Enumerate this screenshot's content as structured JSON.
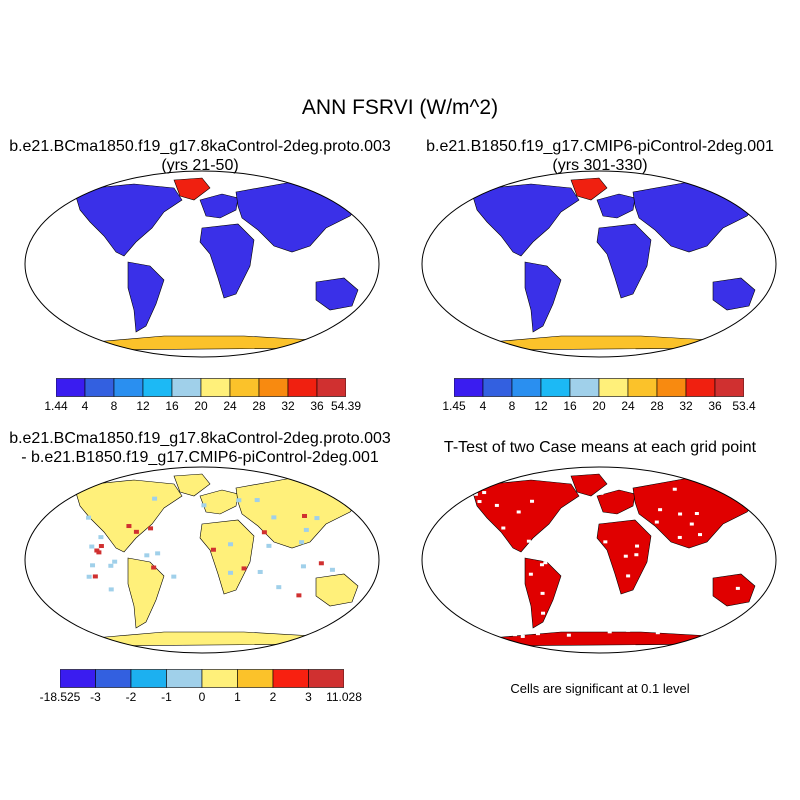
{
  "title": "ANN FSRVI (W/m^2)",
  "panels": [
    {
      "title_line1": "b.e21.BCma1850.f19_g17.8kaControl-2deg.proto.003",
      "title_line2": "(yrs 21-50)",
      "colorbar": {
        "labels": [
          "1.44",
          "4",
          "8",
          "12",
          "16",
          "20",
          "24",
          "28",
          "32",
          "36",
          "54.39"
        ],
        "colors": [
          "#3a1cf0",
          "#3360e0",
          "#2a8ff0",
          "#1cb9f5",
          "#a0d0ea",
          "#fff07a",
          "#fbc22a",
          "#f88a10",
          "#f02010",
          "#d03030"
        ]
      }
    },
    {
      "title_line1": "b.e21.B1850.f19_g17.CMIP6-piControl-2deg.001",
      "title_line2": "(yrs 301-330)",
      "colorbar": {
        "labels": [
          "1.45",
          "4",
          "8",
          "12",
          "16",
          "20",
          "24",
          "28",
          "32",
          "36",
          "53.4"
        ],
        "colors": [
          "#3a1cf0",
          "#3360e0",
          "#2a8ff0",
          "#1cb9f5",
          "#a0d0ea",
          "#fff07a",
          "#fbc22a",
          "#f88a10",
          "#f02010",
          "#d03030"
        ]
      }
    },
    {
      "title_line1": "b.e21.BCma1850.f19_g17.8kaControl-2deg.proto.003",
      "title_line2": "- b.e21.B1850.f19_g17.CMIP6-piControl-2deg.001",
      "colorbar": {
        "labels": [
          "-18.525",
          "-3",
          "-2",
          "-1",
          "0",
          "1",
          "2",
          "3",
          "11.028"
        ],
        "colors": [
          "#3a1cf0",
          "#3360e0",
          "#1cb0f0",
          "#a0d0ea",
          "#fff07a",
          "#fbc22a",
          "#f82010",
          "#d03030"
        ]
      }
    },
    {
      "title_line1": "T-Test of two Case means at each grid point",
      "note": "Cells are significant at 0.1 level",
      "colors": [
        "#e00000"
      ]
    }
  ]
}
